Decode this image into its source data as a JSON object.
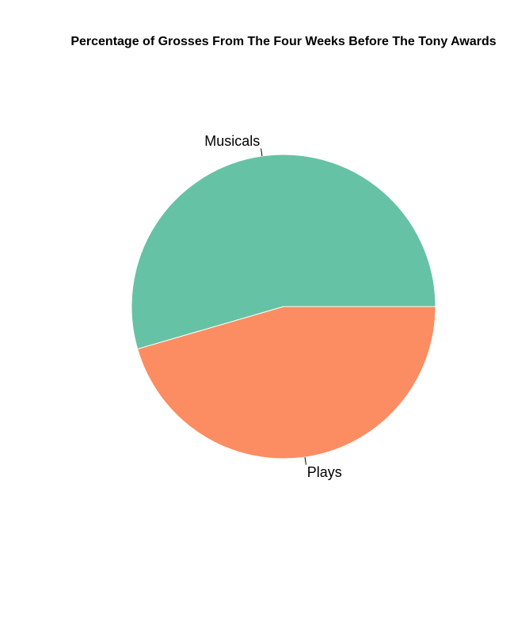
{
  "chart_data": {
    "type": "pie",
    "title": "Percentage of Grosses From The Four Weeks Before The Tony Awards",
    "labels": [
      "Musicals",
      "Plays"
    ],
    "values": [
      54.5,
      45.5
    ],
    "colors": [
      "#66c2a5",
      "#fc8d62"
    ],
    "start_angle_deg": 0,
    "direction": "counterclockwise",
    "legend": "none"
  }
}
